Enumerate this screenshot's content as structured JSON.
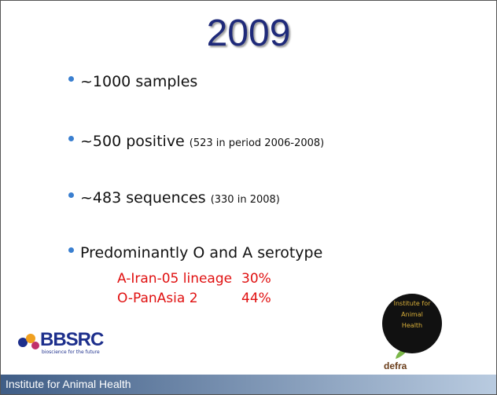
{
  "title": "2009",
  "bullets": [
    {
      "text": "~1000 samples"
    },
    {
      "text": "~500 positive",
      "note": "(523 in period 2006-2008)"
    },
    {
      "text": "~483 sequences",
      "note": "(330 in 2008)"
    },
    {
      "text": "Predominantly O and A serotype",
      "items": [
        {
          "label": "A-Iran-05 lineage",
          "value": "30%"
        },
        {
          "label": "O-PanAsia 2",
          "value": "44%"
        }
      ]
    }
  ],
  "logos": {
    "bbsrc": "BBSRC",
    "bbsrc_tagline": "bioscience for the future",
    "defra": "defra",
    "iah": "Institute for Animal Health"
  },
  "footer": "Institute for Animal Health"
}
